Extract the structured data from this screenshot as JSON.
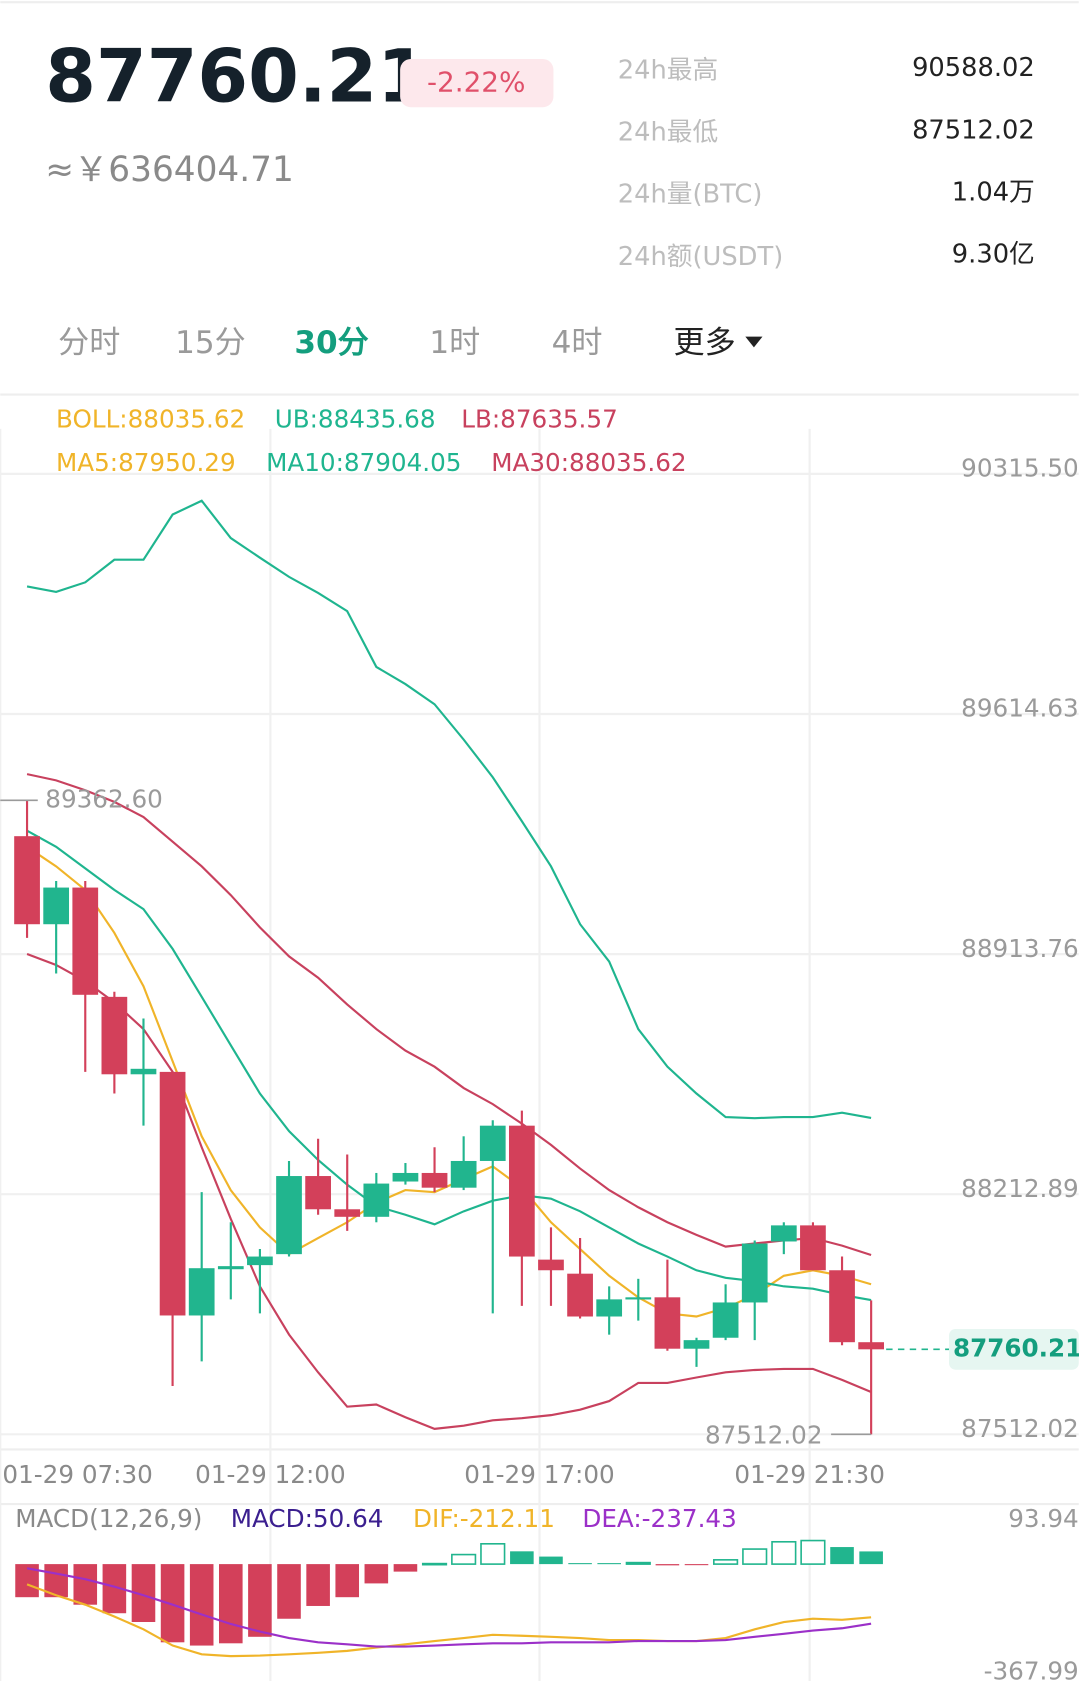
{
  "header": {
    "price": "87760.21",
    "cny": "≈￥636404.71",
    "change": "-2.22%",
    "stats": [
      {
        "label": "24h最高",
        "value": "90588.02"
      },
      {
        "label": "24h最低",
        "value": "87512.02"
      },
      {
        "label": "24h量(BTC)",
        "value": "1.04万"
      },
      {
        "label": "24h额(USDT)",
        "value": "9.30亿"
      }
    ]
  },
  "tabs": {
    "items": [
      "分时",
      "15分",
      "30分",
      "1时",
      "4时",
      "更多"
    ],
    "active": 2
  },
  "chart_data": [
    {
      "type": "candlestick",
      "up_color": "#21b58e",
      "down_color": "#d3405a",
      "open": [
        89258,
        89001,
        89108,
        88789,
        88563,
        88570,
        87859,
        87994,
        88006,
        88038,
        88266,
        88169,
        88147,
        88250,
        88275,
        88232,
        88310,
        88413,
        88022,
        87981,
        87856,
        87906,
        87912,
        87762,
        87794,
        87897,
        88075,
        88122,
        87991,
        87781
      ],
      "high": [
        89362.6,
        89127,
        89127,
        88804,
        88726,
        88570,
        88219,
        88131,
        88053,
        88310,
        88375,
        88329,
        88275,
        88304,
        88350,
        88382,
        88429,
        88457,
        88116,
        88085,
        87944,
        87966,
        88022,
        87794,
        87950,
        88078,
        88131,
        88131,
        88031,
        87903
      ],
      "low": [
        88961,
        88857,
        88570,
        88507,
        88413,
        87653,
        87725,
        87906,
        87865,
        88031,
        88153,
        88106,
        88131,
        88241,
        88219,
        88225,
        87865,
        87887,
        87887,
        87850,
        87803,
        87844,
        87756,
        87709,
        87787,
        87787,
        88038,
        87991,
        87772,
        87512.02
      ],
      "close": [
        89001,
        89108,
        88795,
        88563,
        88579,
        87859,
        87997,
        88003,
        88031,
        88266,
        88169,
        88147,
        88244,
        88275,
        88232,
        88310,
        88413,
        88031,
        87991,
        87856,
        87906,
        87912,
        87762,
        87787,
        87897,
        88069,
        88122,
        87991,
        87781,
        87760.21
      ],
      "boll_label": {
        "text": "BOLL:88035.62",
        "color": "#f0b429"
      },
      "series": [
        {
          "name": "UB:88435.68",
          "color": "#1fb58f",
          "row": 0,
          "values": [
            89987,
            89971,
            89999,
            90065,
            90065,
            90197,
            90237,
            90128,
            90071,
            90015,
            89968,
            89915,
            89752,
            89702,
            89643,
            89540,
            89430,
            89302,
            89170,
            89001,
            88892,
            88695,
            88585,
            88507,
            88438,
            88435,
            88438,
            88438,
            88451,
            88435.68
          ]
        },
        {
          "name": "LB:87635.57",
          "color": "#c8415e",
          "row": 0,
          "values": [
            88914,
            88882,
            88835,
            88773,
            88695,
            88570,
            88350,
            88141,
            87944,
            87803,
            87693,
            87593,
            87599,
            87562,
            87528,
            87537,
            87553,
            87559,
            87568,
            87584,
            87609,
            87662,
            87662,
            87678,
            87693,
            87700,
            87703,
            87703,
            87671,
            87635.57
          ]
        },
        {
          "name": "MA5:87950.29",
          "color": "#f0b429",
          "row": 1,
          "values": [
            89227,
            89170,
            89101,
            88976,
            88820,
            88601,
            88382,
            88225,
            88116,
            88038,
            88085,
            88131,
            88188,
            88225,
            88219,
            88257,
            88294,
            88232,
            88131,
            88053,
            87975,
            87912,
            87865,
            87856,
            87881,
            87919,
            87975,
            87991,
            87975,
            87950.29
          ]
        },
        {
          "name": "MA10:87904.05",
          "color": "#1fb58f",
          "row": 1,
          "values": [
            89274,
            89227,
            89164,
            89101,
            89045,
            88929,
            88789,
            88648,
            88507,
            88397,
            88313,
            88241,
            88178,
            88153,
            88125,
            88163,
            88194,
            88210,
            88200,
            88163,
            88116,
            88069,
            88031,
            87991,
            87969,
            87959,
            87944,
            87937,
            87919,
            87904.05
          ]
        },
        {
          "name": "MA30:88035.62",
          "color": "#c8415e",
          "row": 1,
          "values": [
            89439,
            89421,
            89392,
            89358,
            89314,
            89242,
            89170,
            89086,
            88992,
            88907,
            88845,
            88767,
            88695,
            88632,
            88585,
            88523,
            88476,
            88419,
            88357,
            88288,
            88225,
            88175,
            88131,
            88094,
            88060,
            88069,
            88078,
            88085,
            88063,
            88035.62
          ]
        }
      ],
      "ylim": [
        87468,
        90447
      ],
      "yticks": [
        87512.02,
        88212.89,
        88913.76,
        89614.63,
        {
          "value": 90315.5,
          "label": "90315.50"
        }
      ],
      "x_labels": [
        "01-29 07:30",
        "01-29 12:00",
        "01-29 17:00",
        "01-29 21:30"
      ],
      "max_marker": {
        "value": 89362.6,
        "label": "89362.60"
      },
      "min_marker": 87512.02,
      "last_price": 87760.21
    },
    {
      "type": "macd",
      "title": "MACD(12,26,9)",
      "up_color": "#21b58e",
      "down_color": "#d3405a",
      "series": [
        {
          "name": "MACD:50.64",
          "color": "#3b1f8f",
          "kind": "bar",
          "values": [
            -132,
            -132,
            -162,
            -196,
            -231,
            -312,
            -325,
            -316,
            -290,
            -218,
            -167,
            -132,
            -77,
            -30,
            2,
            38,
            81,
            51,
            30,
            4,
            4,
            6,
            -5,
            -4,
            17,
            60,
            89,
            93.94,
            68,
            50.64
          ]
        },
        {
          "name": "DIF:-212.11",
          "color": "#f0b429",
          "kind": "line",
          "values": [
            -81,
            -124,
            -162,
            -209,
            -260,
            -325,
            -360,
            -367,
            -365,
            -360,
            -354,
            -346,
            -333,
            -320,
            -307,
            -295,
            -282,
            -286,
            -290,
            -295,
            -303,
            -303,
            -307,
            -307,
            -295,
            -260,
            -231,
            -218,
            -222,
            -212.11
          ]
        },
        {
          "name": "DEA:-237.43",
          "color": "#9b30c8",
          "kind": "line",
          "values": [
            -17,
            -38,
            -60,
            -90,
            -124,
            -162,
            -201,
            -239,
            -269,
            -295,
            -312,
            -320,
            -329,
            -329,
            -325,
            -320,
            -316,
            -316,
            -312,
            -312,
            -312,
            -307,
            -307,
            -307,
            -303,
            -290,
            -278,
            -265,
            -256,
            -237.43
          ]
        }
      ],
      "ylim": [
        -367.99,
        93.94
      ],
      "yticks": [
        -367.99,
        93.94
      ]
    }
  ]
}
